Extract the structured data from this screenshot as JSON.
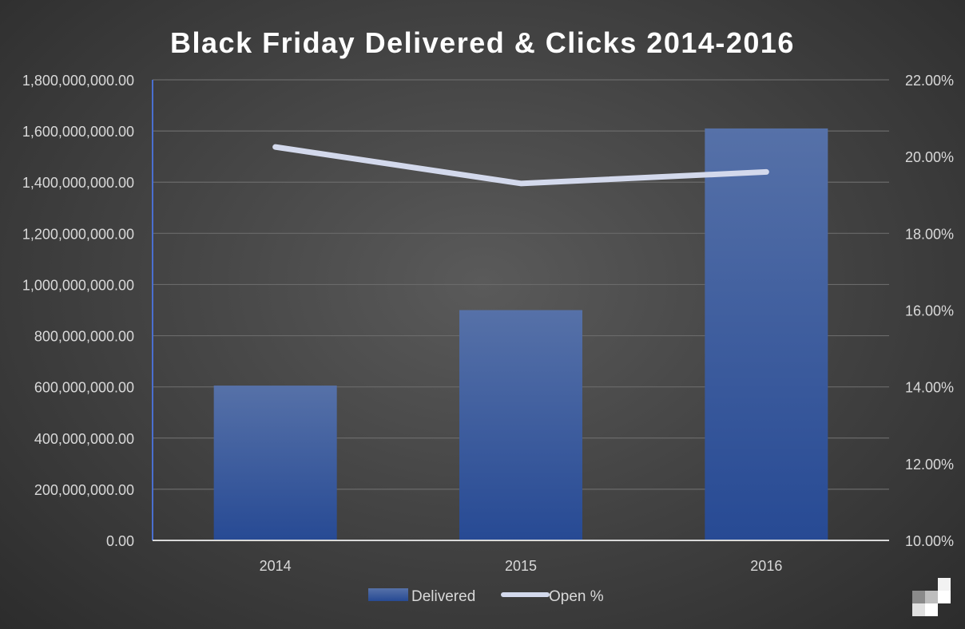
{
  "chart_data": {
    "type": "bar",
    "title": "Black Friday Delivered & Clicks 2014-2016",
    "categories": [
      "2014",
      "2015",
      "2016"
    ],
    "series": [
      {
        "name": "Delivered",
        "type": "bar",
        "axis": "left",
        "values": [
          605000000,
          900000000,
          1610000000
        ]
      },
      {
        "name": "Open %",
        "type": "line",
        "axis": "right",
        "values": [
          20.25,
          19.3,
          19.6
        ]
      }
    ],
    "y_left": {
      "ylim": [
        0,
        1800000000
      ],
      "ticks": [
        0,
        200000000,
        400000000,
        600000000,
        800000000,
        1000000000,
        1200000000,
        1400000000,
        1600000000,
        1800000000
      ],
      "tick_labels": [
        "0.00",
        "200,000,000.00",
        "400,000,000.00",
        "600,000,000.00",
        "800,000,000.00",
        "1,000,000,000.00",
        "1,200,000,000.00",
        "1,400,000,000.00",
        "1,600,000,000.00",
        "1,800,000,000.00"
      ]
    },
    "y_right": {
      "ylim": [
        10,
        22
      ],
      "ticks": [
        10,
        12,
        14,
        16,
        18,
        20,
        22
      ],
      "tick_labels": [
        "10.00%",
        "12.00%",
        "14.00%",
        "16.00%",
        "18.00%",
        "20.00%",
        "22.00%"
      ]
    },
    "grid": true,
    "legend": "bottom-center",
    "colors": {
      "bar_top": "#5671a8",
      "bar_bottom": "#274a94",
      "line": "#d3d9ec",
      "axis_left": "#4a6fd0"
    }
  }
}
